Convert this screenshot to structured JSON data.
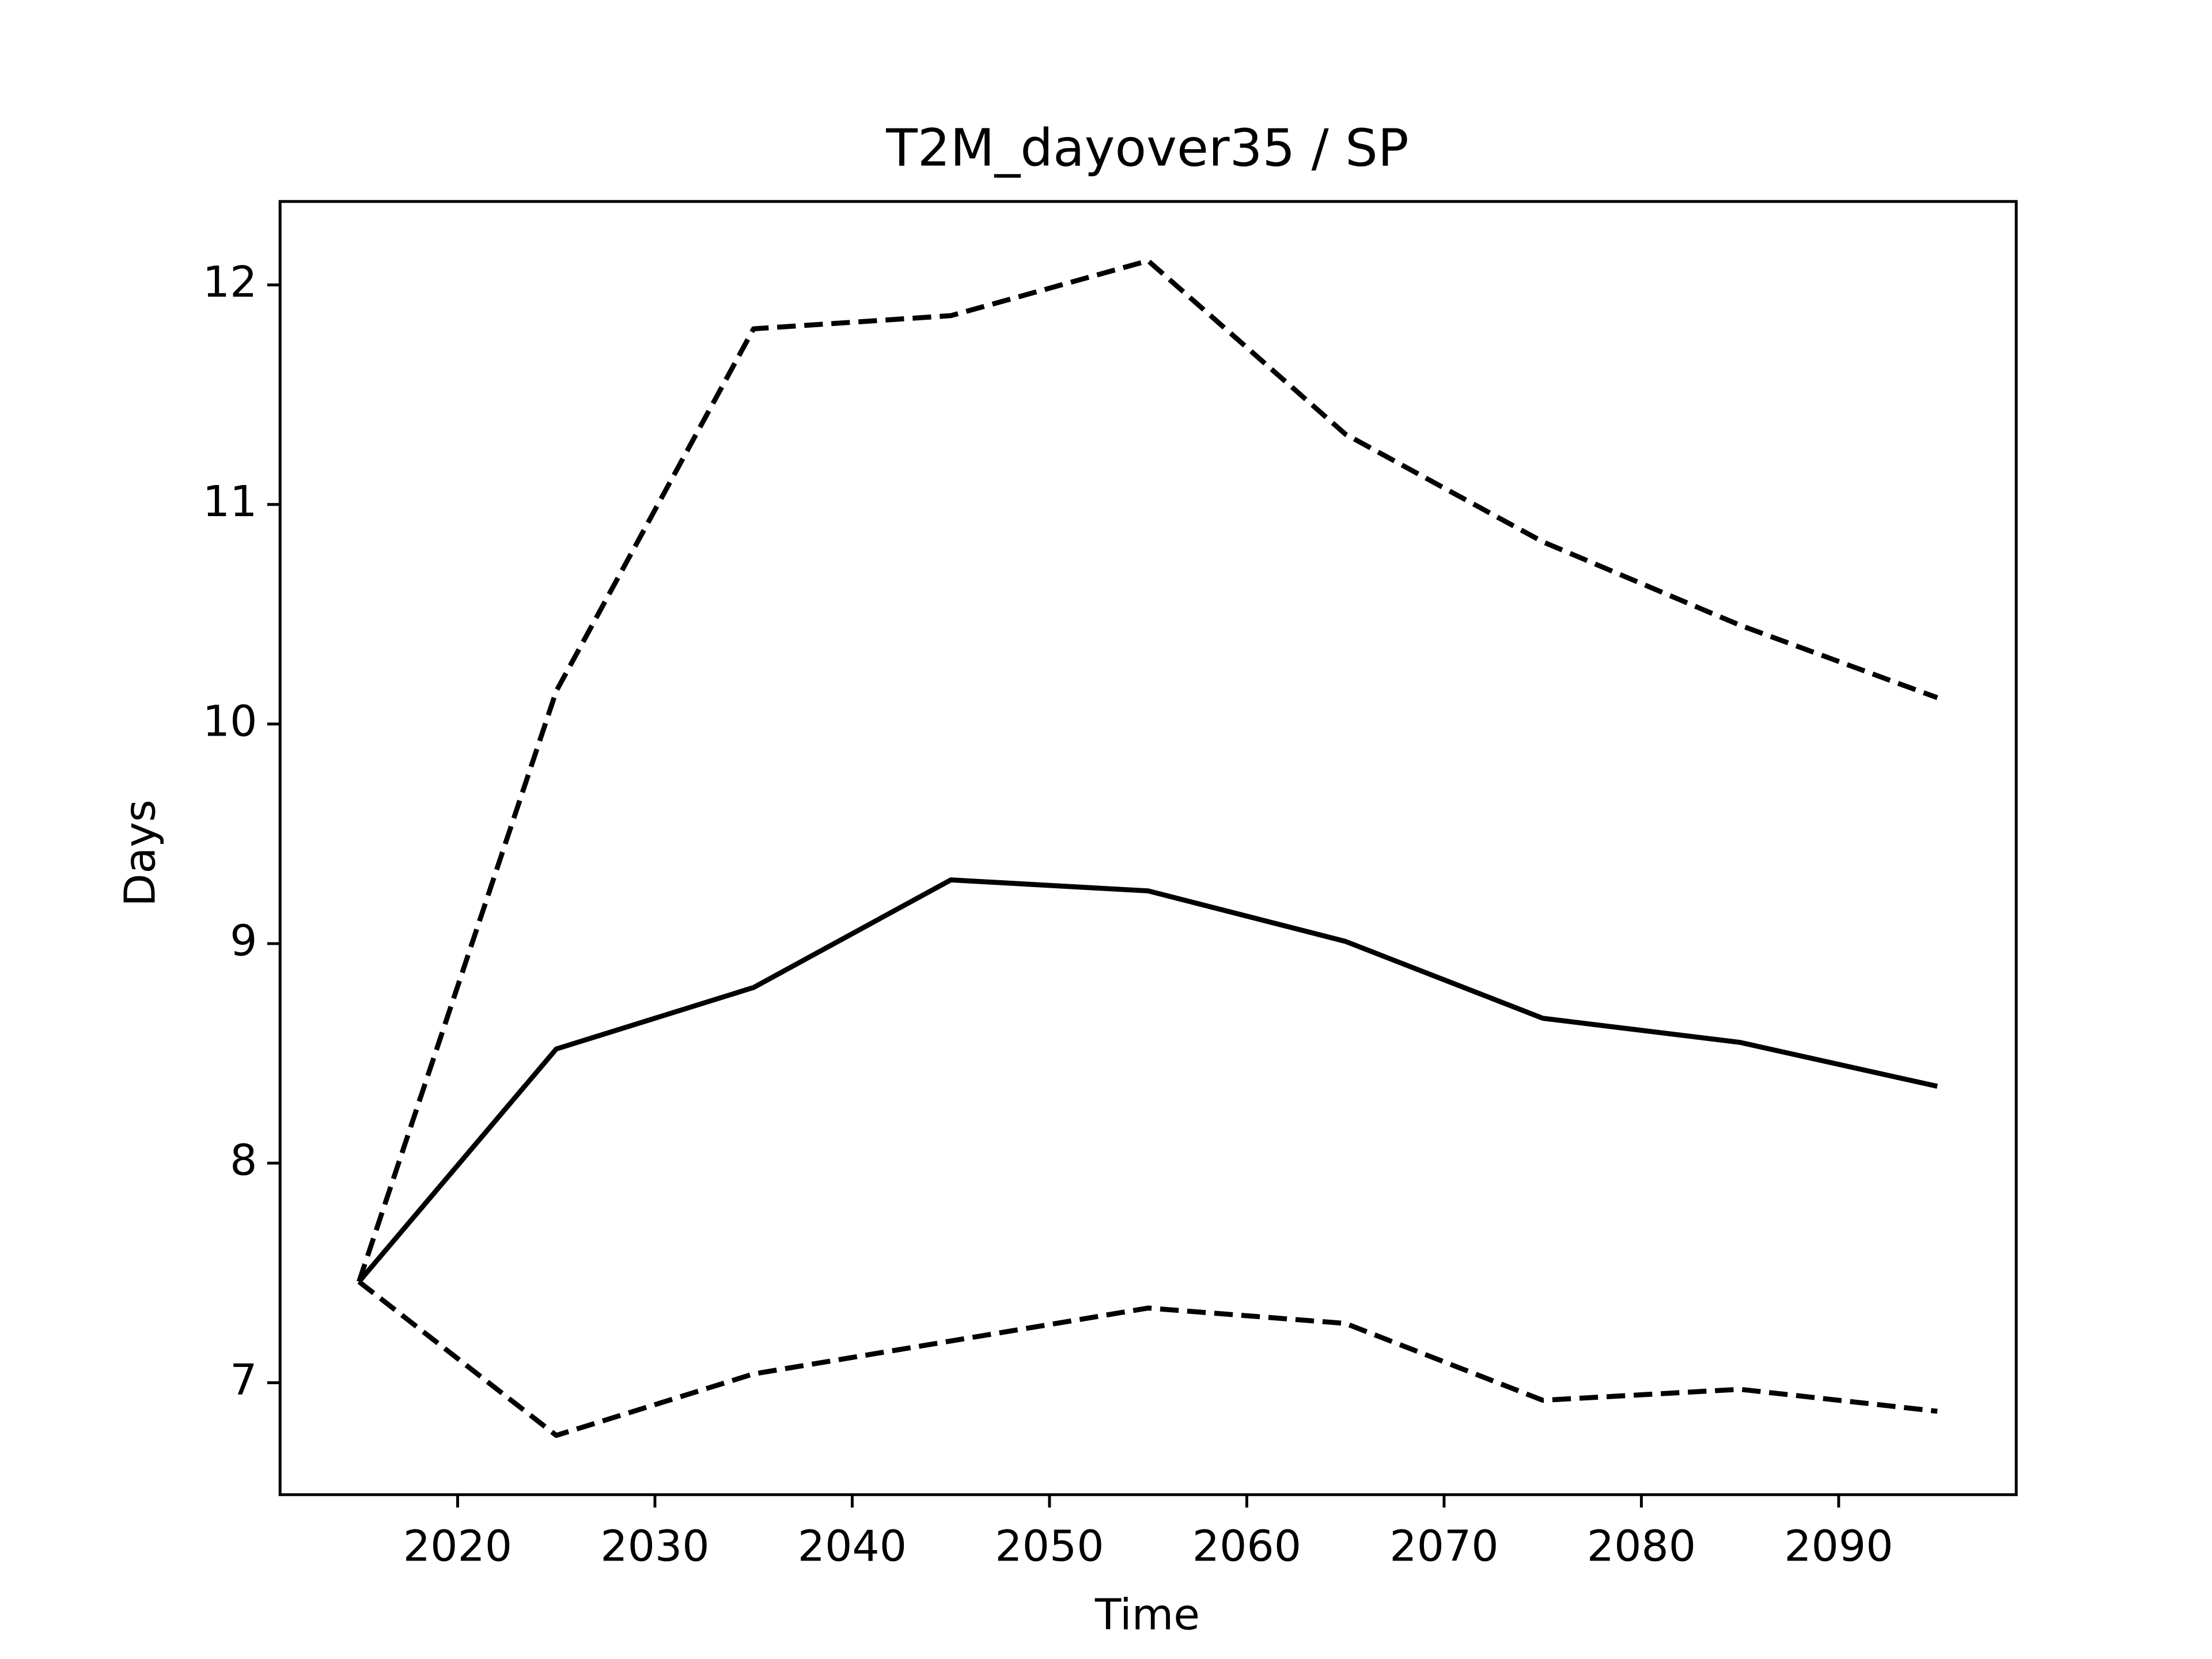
{
  "chart_data": {
    "type": "line",
    "title": "T2M_dayover35 / SP",
    "xlabel": "Time",
    "ylabel": "Days",
    "x": [
      2015,
      2025,
      2035,
      2045,
      2055,
      2065,
      2075,
      2085,
      2095
    ],
    "series": [
      {
        "color": "#000000",
        "linestyle": "solid",
        "values": [
          7.46,
          8.52,
          8.8,
          9.29,
          9.24,
          9.01,
          8.66,
          8.55,
          8.35
        ]
      },
      {
        "color": "#000000",
        "linestyle": "dashed",
        "values": [
          7.46,
          10.15,
          11.8,
          11.86,
          12.11,
          11.32,
          10.83,
          10.45,
          10.12
        ]
      },
      {
        "color": "#000000",
        "linestyle": "dashed",
        "values": [
          7.46,
          6.76,
          7.04,
          7.19,
          7.34,
          7.27,
          6.92,
          6.97,
          6.87
        ]
      }
    ],
    "xlim": [
      2011,
      2099
    ],
    "xticks": [
      2020,
      2030,
      2040,
      2050,
      2060,
      2070,
      2080,
      2090
    ],
    "ylim": [
      6.49,
      12.38
    ],
    "yticks": [
      7,
      8,
      9,
      10,
      11,
      12
    ],
    "grid": false
  }
}
